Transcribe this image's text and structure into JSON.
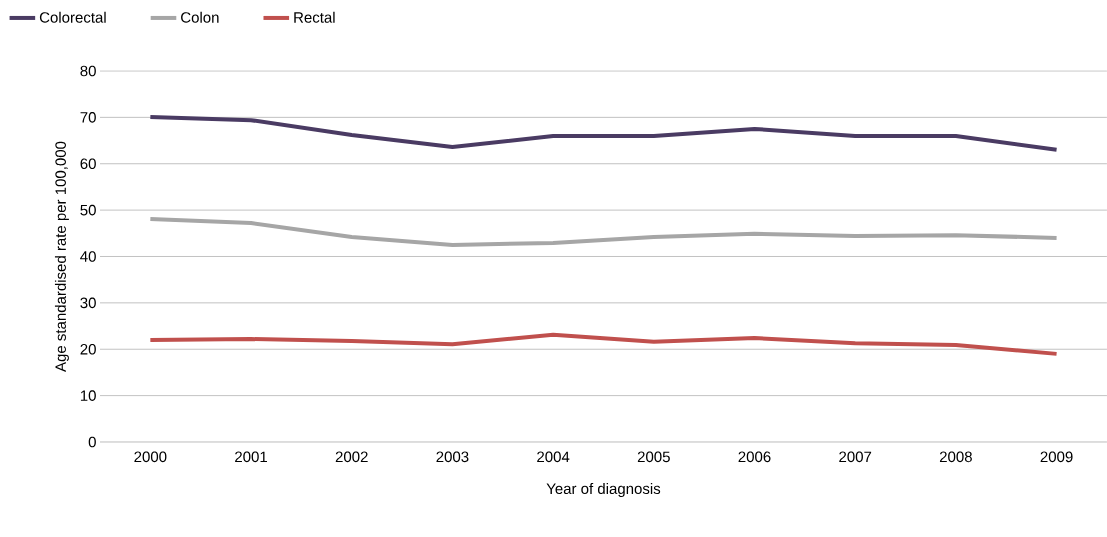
{
  "chart_data": {
    "type": "line",
    "xlabel": "Year of diagnosis",
    "ylabel": "Age standardised rate per 100,000",
    "categories": [
      "2000",
      "2001",
      "2002",
      "2003",
      "2004",
      "2005",
      "2006",
      "2007",
      "2008",
      "2009"
    ],
    "series": [
      {
        "name": "Colorectal",
        "color": "#4a3b63",
        "values": [
          70.1,
          69.4,
          66.2,
          63.6,
          66.0,
          66.0,
          67.5,
          66.0,
          66.0,
          63.0
        ]
      },
      {
        "name": "Colon",
        "color": "#a6a6a6",
        "values": [
          48.1,
          47.2,
          44.2,
          42.5,
          42.9,
          44.2,
          44.9,
          44.4,
          44.6,
          44.0
        ]
      },
      {
        "name": "Rectal",
        "color": "#c0504d",
        "values": [
          22.0,
          22.2,
          21.8,
          21.1,
          23.1,
          21.6,
          22.4,
          21.3,
          20.9,
          19.0
        ]
      }
    ],
    "ylim": [
      0,
      80
    ],
    "yticks": [
      0,
      10,
      20,
      30,
      40,
      50,
      60,
      70,
      80
    ],
    "grid": "y",
    "legend": "top left",
    "line_style": "solid"
  }
}
